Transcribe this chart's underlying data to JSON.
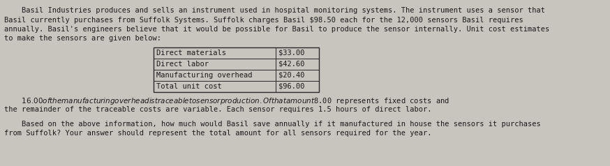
{
  "bg_color": "#c8c5bf",
  "text_color": "#1a1a1a",
  "font_family": "monospace",
  "font_size": 7.5,
  "paragraph1_lines": [
    "    Basil Industries produces and sells an instrument used in hospital monitoring systems. The instrument uses a sensor that",
    "Basil currently purchases from Suffolk Systems. Suffolk charges Basil $98.50 each for the 12,000 sensors Basil requires",
    "annually. Basil's engineers believe that it would be possible for Basil to produce the sensor internally. Unit cost estimates",
    "to make the sensors are given below:"
  ],
  "table_rows": [
    [
      "Direct materials",
      "$33.00"
    ],
    [
      "Direct labor",
      "$42.60"
    ],
    [
      "Manufacturing overhead",
      "$20.40"
    ],
    [
      "Total unit cost",
      "$96.00"
    ]
  ],
  "paragraph2_lines": [
    "    $16.00 of the manufacturing overhead is traceable to sensor production. Of that amount $8.00 represents fixed costs and",
    "the remainder of the traceable costs are variable. Each sensor requires 1.5 hours of direct labor."
  ],
  "paragraph3_lines": [
    "    Based on the above information, how much would Basil save annually if it manufactured in house the sensors it purchases",
    "from Suffolk? Your answer should represent the total amount for all sensors required for the year."
  ]
}
